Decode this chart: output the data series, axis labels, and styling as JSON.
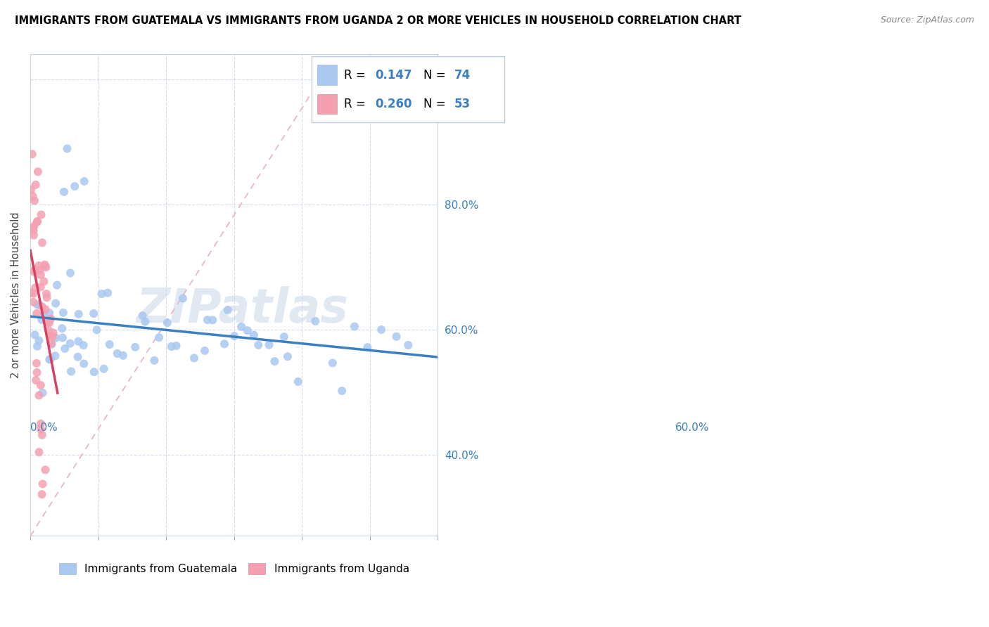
{
  "title": "IMMIGRANTS FROM GUATEMALA VS IMMIGRANTS FROM UGANDA 2 OR MORE VEHICLES IN HOUSEHOLD CORRELATION CHART",
  "source": "Source: ZipAtlas.com",
  "ylabel": "2 or more Vehicles in Household",
  "xlim": [
    0.0,
    0.6
  ],
  "ylim": [
    0.27,
    1.04
  ],
  "watermark": "ZIPatlas",
  "guatemala_color": "#a8c8f0",
  "uganda_color": "#f4a0b0",
  "trendline_guatemala_color": "#3a7fc1",
  "trendline_uganda_color": "#d94060",
  "ref_line_color": "#e0a0b0",
  "R_guatemala": 0.147,
  "N_guatemala": 74,
  "R_uganda": 0.26,
  "N_uganda": 53,
  "guatemala_scatter_x": [
    0.005,
    0.008,
    0.01,
    0.012,
    0.015,
    0.018,
    0.02,
    0.022,
    0.025,
    0.028,
    0.03,
    0.032,
    0.035,
    0.038,
    0.04,
    0.042,
    0.045,
    0.048,
    0.05,
    0.052,
    0.055,
    0.058,
    0.06,
    0.065,
    0.07,
    0.075,
    0.08,
    0.085,
    0.09,
    0.095,
    0.1,
    0.105,
    0.11,
    0.115,
    0.12,
    0.13,
    0.14,
    0.15,
    0.16,
    0.17,
    0.18,
    0.19,
    0.2,
    0.21,
    0.22,
    0.23,
    0.24,
    0.25,
    0.26,
    0.27,
    0.28,
    0.29,
    0.3,
    0.31,
    0.32,
    0.33,
    0.34,
    0.35,
    0.36,
    0.37,
    0.38,
    0.4,
    0.42,
    0.44,
    0.46,
    0.48,
    0.5,
    0.52,
    0.54,
    0.56,
    0.045,
    0.055,
    0.065,
    0.075
  ],
  "guatemala_scatter_y": [
    0.58,
    0.6,
    0.56,
    0.61,
    0.59,
    0.57,
    0.6,
    0.58,
    0.61,
    0.59,
    0.56,
    0.6,
    0.57,
    0.59,
    0.61,
    0.56,
    0.58,
    0.6,
    0.57,
    0.59,
    0.56,
    0.58,
    0.6,
    0.59,
    0.57,
    0.6,
    0.58,
    0.56,
    0.61,
    0.59,
    0.58,
    0.56,
    0.6,
    0.57,
    0.59,
    0.58,
    0.57,
    0.56,
    0.58,
    0.59,
    0.6,
    0.58,
    0.61,
    0.59,
    0.6,
    0.58,
    0.57,
    0.6,
    0.59,
    0.61,
    0.58,
    0.6,
    0.57,
    0.59,
    0.56,
    0.58,
    0.6,
    0.59,
    0.57,
    0.58,
    0.6,
    0.59,
    0.61,
    0.6,
    0.58,
    0.59,
    0.6,
    0.58,
    0.61,
    0.62,
    0.87,
    0.91,
    0.84,
    0.87
  ],
  "uganda_scatter_x": [
    0.003,
    0.005,
    0.006,
    0.007,
    0.008,
    0.009,
    0.01,
    0.011,
    0.012,
    0.013,
    0.014,
    0.015,
    0.016,
    0.017,
    0.018,
    0.019,
    0.02,
    0.021,
    0.022,
    0.023,
    0.024,
    0.025,
    0.026,
    0.027,
    0.028,
    0.029,
    0.03,
    0.031,
    0.032,
    0.033,
    0.003,
    0.004,
    0.005,
    0.006,
    0.007,
    0.008,
    0.009,
    0.01,
    0.011,
    0.012,
    0.013,
    0.014,
    0.015,
    0.016,
    0.017,
    0.018,
    0.019,
    0.02,
    0.002,
    0.003,
    0.004,
    0.005,
    0.006
  ],
  "uganda_scatter_y": [
    0.84,
    0.82,
    0.86,
    0.78,
    0.8,
    0.76,
    0.82,
    0.72,
    0.78,
    0.74,
    0.7,
    0.76,
    0.68,
    0.72,
    0.7,
    0.66,
    0.7,
    0.64,
    0.68,
    0.65,
    0.63,
    0.66,
    0.62,
    0.64,
    0.61,
    0.59,
    0.62,
    0.58,
    0.56,
    0.6,
    0.68,
    0.72,
    0.64,
    0.68,
    0.62,
    0.58,
    0.56,
    0.54,
    0.52,
    0.5,
    0.48,
    0.46,
    0.44,
    0.42,
    0.4,
    0.38,
    0.36,
    0.38,
    0.88,
    0.82,
    0.76,
    0.7,
    0.64
  ]
}
